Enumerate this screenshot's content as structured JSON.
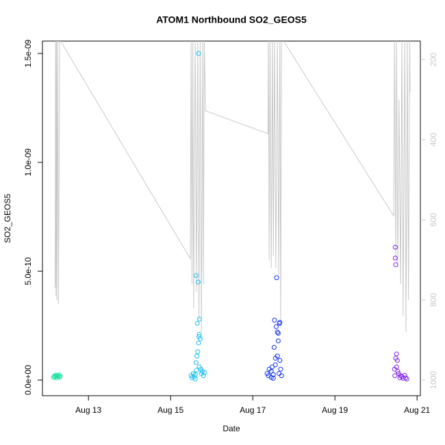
{
  "chart_data": {
    "type": "scatter",
    "title": "ATOM1 Northbound SO2_GEOS5",
    "x_label": "Date",
    "y_label": "SO2_GEOS5",
    "xlim": [
      11.88,
      21.08
    ],
    "ylim": [
      -7.2e-11,
      1.557e-09
    ],
    "y2lim": [
      1039,
      154
    ],
    "xticks": [
      {
        "value": 13,
        "label": "Aug 13"
      },
      {
        "value": 15,
        "label": "Aug 15"
      },
      {
        "value": 17,
        "label": "Aug 17"
      },
      {
        "value": 19,
        "label": "Aug 19"
      },
      {
        "value": 21,
        "label": "Aug 21"
      }
    ],
    "yticks": [
      {
        "value": 0,
        "label": "0.0e+00"
      },
      {
        "value": 5e-10,
        "label": "5.0e-10"
      },
      {
        "value": 1e-09,
        "label": "1.0e-09"
      },
      {
        "value": 1.5e-09,
        "label": "1.5e-09"
      }
    ],
    "y2ticks": [
      200,
      400,
      600,
      800,
      1000
    ],
    "series": [
      {
        "type": "line",
        "axis": "y2",
        "color": "#c8c8c8",
        "x": [
          12.18,
          12.19,
          12.2,
          12.21,
          12.22,
          12.23,
          12.25,
          12.27,
          12.3,
          15.48,
          15.5,
          15.52,
          15.54,
          15.56,
          15.6,
          15.63,
          15.66,
          15.69,
          15.72,
          15.75,
          15.78,
          15.8,
          15.82,
          15.85,
          17.37,
          17.38,
          17.4,
          17.42,
          17.45,
          17.48,
          17.5,
          17.53,
          17.56,
          17.6,
          17.63,
          17.66,
          17.68,
          17.7,
          17.75,
          20.43,
          20.45,
          20.48,
          20.5,
          20.53,
          20.56,
          20.6,
          20.63,
          20.66,
          20.7,
          20.73,
          20.76,
          20.79,
          20.82,
          20.83
        ],
        "values": [
          770,
          760,
          150,
          790,
          150,
          800,
          150,
          810,
          150,
          697,
          150,
          760,
          150,
          820,
          150,
          780,
          150,
          850,
          150,
          880,
          150,
          760,
          150,
          328,
          385,
          150,
          700,
          150,
          720,
          150,
          690,
          150,
          720,
          150,
          740,
          150,
          870,
          150,
          154,
          590,
          150,
          700,
          150,
          720,
          300,
          760,
          150,
          840,
          150,
          880,
          150,
          800,
          150,
          282
        ]
      },
      {
        "color": "#1ce3a0",
        "x": [
          12.15,
          12.17,
          12.19,
          12.2,
          12.22,
          12.24,
          12.26,
          12.28,
          12.3,
          12.31
        ],
        "values": [
          1.2e-11,
          1.8e-11,
          1.5e-11,
          2.2e-11,
          1e-11,
          2e-11,
          1.6e-11,
          2.4e-11,
          1.3e-11,
          1.9e-11
        ]
      },
      {
        "color": "#18c0f0",
        "x": [
          15.5,
          15.52,
          15.55,
          15.57,
          15.6,
          15.62,
          15.64,
          15.65,
          15.62,
          15.67,
          15.68,
          15.68,
          15.7,
          15.7,
          15.72,
          15.73,
          15.75,
          15.77,
          15.8,
          15.82,
          15.6,
          15.63,
          15.66,
          15.69,
          15.7
        ],
        "values": [
          2e-11,
          1e-11,
          3e-11,
          1.5e-11,
          2.5e-11,
          8e-11,
          1.1e-10,
          2.6e-10,
          4.8e-10,
          4.5e-10,
          1.7e-10,
          1.5e-09,
          2.8e-10,
          2.1e-10,
          1.9e-10,
          5e-11,
          3e-11,
          4e-11,
          2e-11,
          3.5e-11,
          5e-12,
          4.5e-11,
          1.3e-10,
          2e-10,
          6e-11
        ]
      },
      {
        "color": "#1030f0",
        "x": [
          17.35,
          17.38,
          17.4,
          17.53,
          17.45,
          17.47,
          17.5,
          17.52,
          17.55,
          17.57,
          17.58,
          17.6,
          17.62,
          17.66,
          17.65,
          17.66,
          17.68,
          17.7,
          17.45,
          17.5,
          17.55,
          17.6,
          17.62,
          17.64
        ],
        "values": [
          3e-11,
          2e-11,
          5e-11,
          2.75e-10,
          4e-11,
          6e-11,
          2.5e-11,
          1.5e-10,
          1e-10,
          2.45e-10,
          4.7e-10,
          2.2e-10,
          2.15e-10,
          2.65e-10,
          2.6e-10,
          9e-11,
          5e-11,
          2e-11,
          1.2e-11,
          8e-12,
          7e-11,
          1.1e-10,
          1.8e-10,
          3e-11
        ]
      },
      {
        "color": "#8020f0",
        "x": [
          20.45,
          20.46,
          20.47,
          20.47,
          20.48,
          20.5,
          20.52,
          20.55,
          20.58,
          20.6,
          20.63,
          20.66,
          20.7,
          20.72,
          20.75,
          20.48,
          20.5,
          20.53
        ],
        "values": [
          5e-11,
          2e-11,
          6.1e-10,
          5.6e-10,
          5.3e-10,
          1.2e-10,
          9e-11,
          3e-11,
          1e-11,
          2e-11,
          1.5e-11,
          8e-12,
          2.2e-11,
          1e-11,
          5e-12,
          1e-10,
          6e-11,
          4e-11
        ]
      }
    ]
  }
}
